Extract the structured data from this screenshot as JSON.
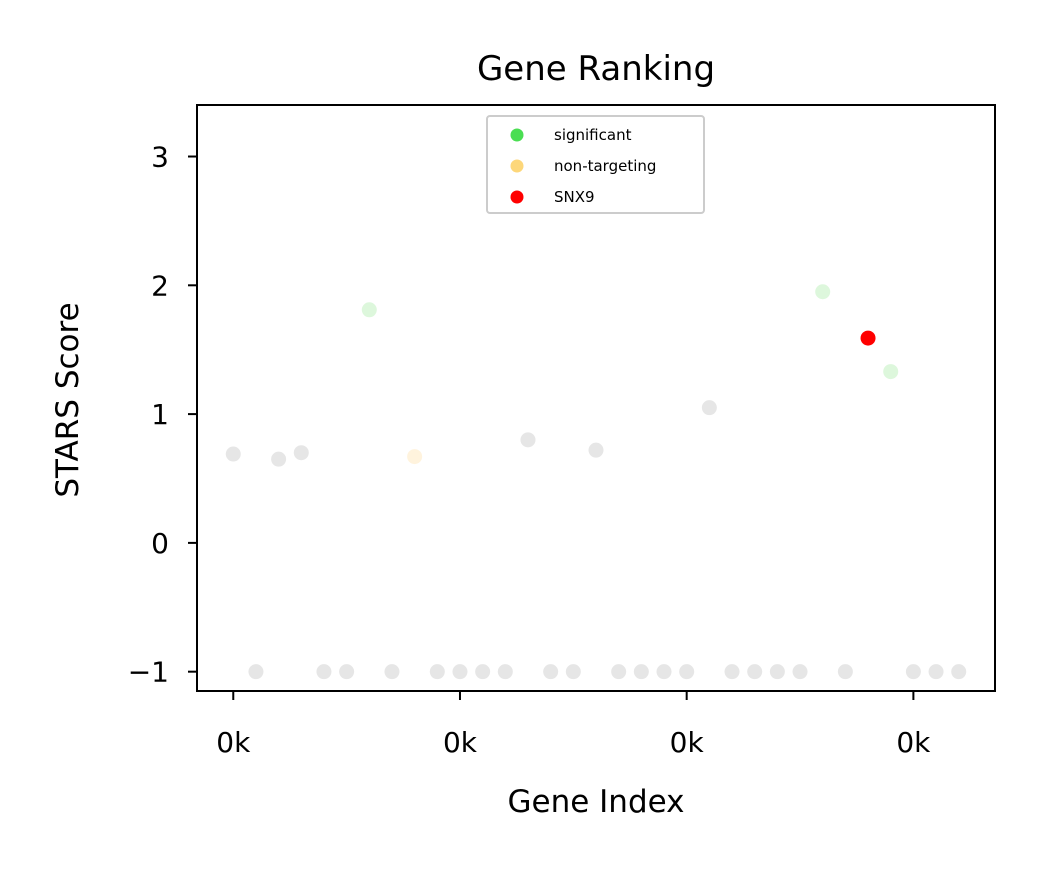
{
  "chart_data": {
    "type": "scatter",
    "title": "Gene Ranking",
    "xlabel": "Gene Index",
    "ylabel": "STARS Score",
    "xlim": [
      -1.6,
      33.6
    ],
    "ylim": [
      -1.15,
      3.4
    ],
    "xticks": [
      0,
      10,
      20,
      30
    ],
    "xtick_labels": [
      "0k",
      "0k",
      "0k",
      "0k"
    ],
    "yticks": [
      -1,
      0,
      1,
      2,
      3
    ],
    "ytick_labels": [
      "−1",
      "0",
      "1",
      "2",
      "3"
    ],
    "grid": false,
    "legend_position": "top-center",
    "series": [
      {
        "name": "",
        "role": "background",
        "color": "#e6e6e6",
        "points": [
          [
            0,
            0.69
          ],
          [
            1,
            -1
          ],
          [
            2,
            0.65
          ],
          [
            3,
            0.7
          ],
          [
            4,
            -1
          ],
          [
            5,
            -1
          ],
          [
            7,
            -1
          ],
          [
            9,
            -1
          ],
          [
            10,
            -1
          ],
          [
            11,
            -1
          ],
          [
            12,
            -1
          ],
          [
            13,
            0.8
          ],
          [
            14,
            -1
          ],
          [
            15,
            -1
          ],
          [
            16,
            0.72
          ],
          [
            17,
            -1
          ],
          [
            18,
            -1
          ],
          [
            19,
            -1
          ],
          [
            20,
            -1
          ],
          [
            21,
            1.05
          ],
          [
            22,
            -1
          ],
          [
            23,
            -1
          ],
          [
            24,
            -1
          ],
          [
            25,
            -1
          ],
          [
            27,
            -1
          ],
          [
            30,
            -1
          ],
          [
            31,
            -1
          ],
          [
            32,
            -1
          ]
        ]
      },
      {
        "name": "",
        "role": "significant-faded",
        "color": "#ddf7dc",
        "points": [
          [
            6,
            1.81
          ],
          [
            26,
            1.95
          ],
          [
            29,
            1.33
          ]
        ]
      },
      {
        "name": "",
        "role": "non-targeting-faded",
        "color": "#fff3dd",
        "points": [
          [
            8,
            0.67
          ]
        ]
      },
      {
        "name": "",
        "role": "highlight",
        "color": "#ff0000",
        "points": [
          [
            28,
            1.59
          ]
        ]
      }
    ],
    "legend": [
      {
        "label": "significant",
        "color": "#4ade52"
      },
      {
        "label": "non-targeting",
        "color": "#fdd77a"
      },
      {
        "label": "SNX9",
        "color": "#ff0000"
      }
    ]
  }
}
